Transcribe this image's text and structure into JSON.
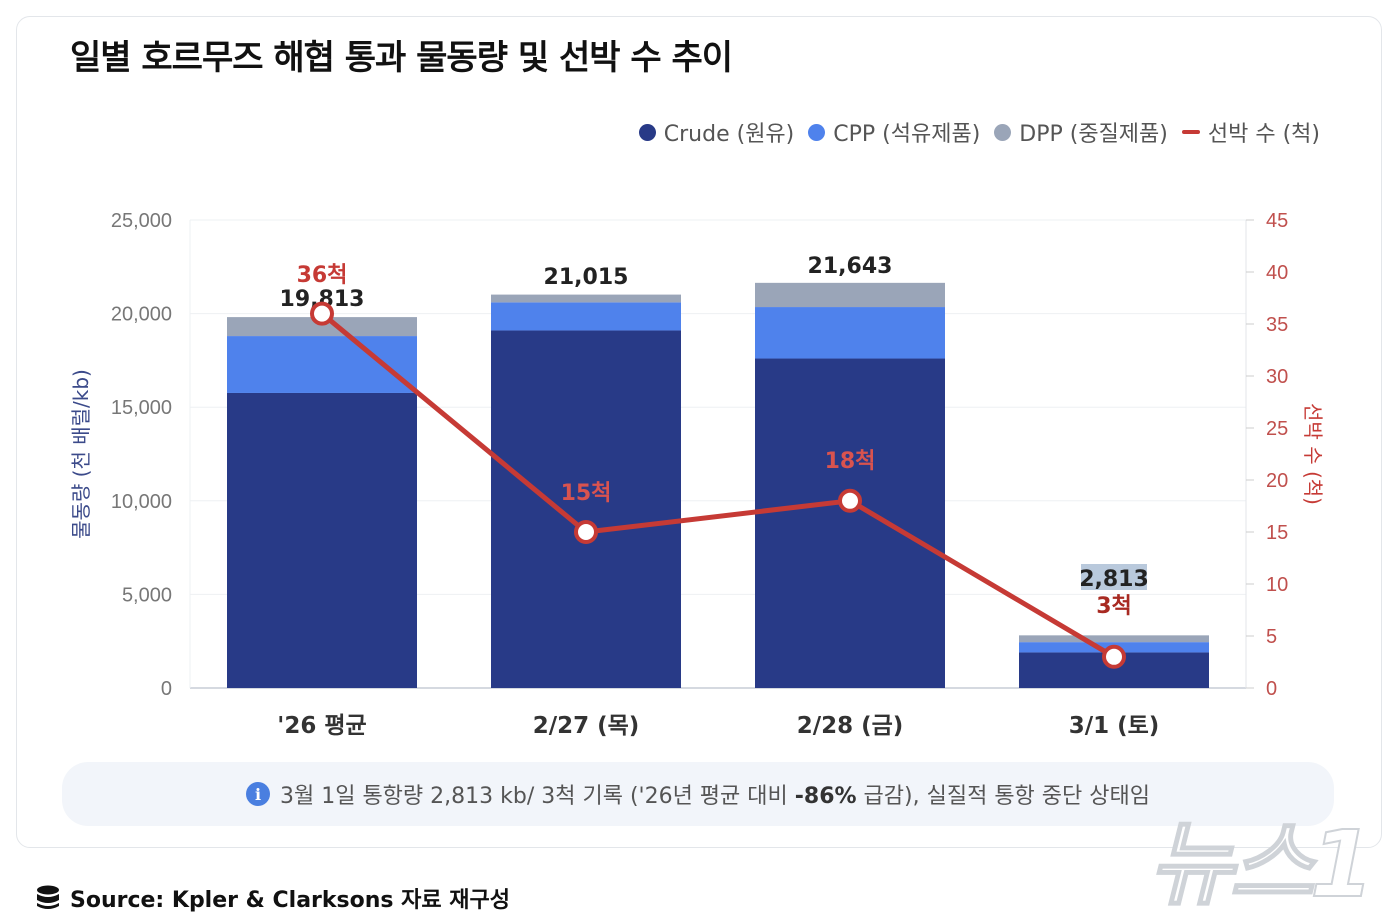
{
  "title": "일별 호르무즈 해협 통과 물동량 및 선박 수 추이",
  "legend": [
    {
      "label": "Crude (원유)",
      "color": "#283a87",
      "shape": "dot"
    },
    {
      "label": "CPP (석유제품)",
      "color": "#4f82ec",
      "shape": "dot"
    },
    {
      "label": "DPP (중질제품)",
      "color": "#9aa5b8",
      "shape": "dot"
    },
    {
      "label": "선박 수 (척)",
      "color": "#c63a35",
      "shape": "line"
    }
  ],
  "chart_data": {
    "type": "bar+line",
    "categories": [
      "'26 평균",
      "2/27 (목)",
      "2/28 (금)",
      "3/1 (토)"
    ],
    "stacked": true,
    "series": [
      {
        "name": "Crude (원유)",
        "axis": "left",
        "color": "#283a87",
        "values": [
          15760,
          19100,
          17600,
          1900
        ]
      },
      {
        "name": "CPP (석유제품)",
        "axis": "left",
        "color": "#4f82ec",
        "values": [
          3040,
          1500,
          2750,
          550
        ]
      },
      {
        "name": "DPP (중질제품)",
        "axis": "left",
        "color": "#9aa5b8",
        "values": [
          1013,
          415,
          1293,
          363
        ]
      },
      {
        "name": "선박 수 (척)",
        "axis": "right",
        "type": "line",
        "color": "#c63a35",
        "values": [
          36,
          15,
          18,
          3
        ]
      }
    ],
    "total_labels": [
      "19,813",
      "21,015",
      "21,643",
      "2,813"
    ],
    "line_labels": [
      "36척",
      "15척",
      "18척",
      "3척"
    ],
    "ylabel": "물동량 (천 배럴/kb)",
    "y2label": "선박 수 (척)",
    "ylim": [
      0,
      25000
    ],
    "y2lim": [
      0,
      45
    ],
    "yticks": [
      "0",
      "5,000",
      "10,000",
      "15,000",
      "20,000",
      "25,000"
    ],
    "y2ticks": [
      "0",
      "5",
      "10",
      "15",
      "20",
      "25",
      "30",
      "35",
      "40",
      "45"
    ],
    "grid": true,
    "legend_position": "top-right"
  },
  "banner": {
    "icon": "info-icon",
    "text_before": "3월 1일 통항량 2,813 kb/ 3척 기록 ('26년 평균 대비 ",
    "text_bold": "-86%",
    "text_after": " 급감), 실질적 통항 중단 상태임"
  },
  "source": {
    "icon": "database-icon",
    "text": "Source: Kpler & Clarksons 자료 재구성"
  },
  "watermark": "뉴스1"
}
